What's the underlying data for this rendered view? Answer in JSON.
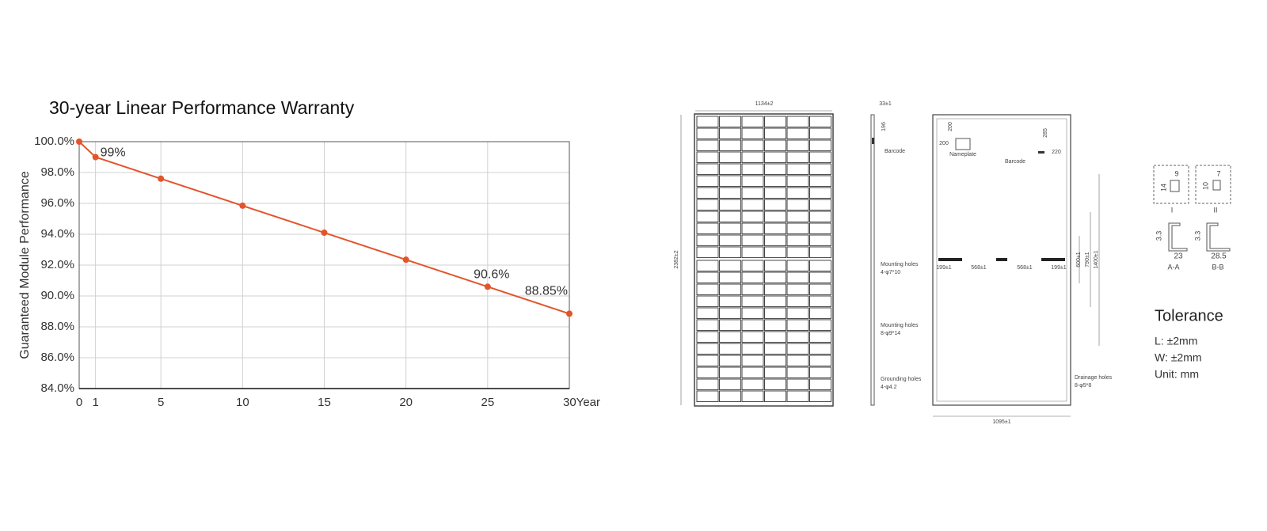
{
  "chart_data": {
    "type": "line",
    "title": "30-year Linear Performance Warranty",
    "y_label": "Guaranteed Module Performance",
    "x": [
      0,
      1,
      5,
      10,
      15,
      20,
      25,
      30
    ],
    "values": [
      100,
      99,
      97.6,
      95.85,
      94.1,
      92.35,
      90.6,
      88.85
    ],
    "value_labels": [
      null,
      "99%",
      null,
      null,
      null,
      null,
      "90.6%",
      "88.85%"
    ],
    "color": "#e2552b",
    "xlim": [
      0,
      30
    ],
    "ylim": [
      84,
      100
    ],
    "xticks": [
      0,
      1,
      5,
      10,
      15,
      20,
      25,
      {
        "value": 30,
        "label": "30Year"
      }
    ],
    "yticks": [
      {
        "value": 84,
        "label": "84.0%"
      },
      {
        "value": 86,
        "label": "86.0%"
      },
      {
        "value": 88,
        "label": "88.0%"
      },
      {
        "value": 90,
        "label": "90.0%"
      },
      {
        "value": 92,
        "label": "92.0%"
      },
      {
        "value": 94,
        "label": "94.0%"
      },
      {
        "value": 96,
        "label": "96.0%"
      },
      {
        "value": 98,
        "label": "98.0%"
      },
      {
        "value": 100,
        "label": "100.0%"
      }
    ],
    "grid": true
  },
  "drawing": {
    "width": "1134±2",
    "height": "2382±2",
    "frame": "33±1",
    "d196": "196",
    "barcode_side": "Barcode",
    "d200a": "200",
    "d200b": "200",
    "nameplate": "Nameplate",
    "barcode_back": "Barcode",
    "d285": "285",
    "d220": "220",
    "mount1": "Mounting holes",
    "mount1_spec": "4-φ7*10",
    "d199a": "199±1",
    "d568a": "568±1",
    "d568b": "568±1",
    "d199b": "199±1",
    "d600": "600±1",
    "d790": "790±1",
    "d1400": "1400±1",
    "mount2": "Mounting holes",
    "mount2_spec": "8-φ9*14",
    "ground": "Grounding holes",
    "ground_spec": "4-φ4.2",
    "drain": "Drainage holes",
    "drain_spec": "8-φ5*8",
    "back_width": "1095±1",
    "s1_h": "14",
    "s1_w": "9",
    "s1_name": "I",
    "s2_h": "10",
    "s2_w": "7",
    "s2_name": "II",
    "aa_h": "3.3",
    "aa_w": "23",
    "aa_name": "A-A",
    "bb_h": "3.3",
    "bb_w": "28.5",
    "bb_name": "B-B",
    "tolerance": "Tolerance",
    "tol_l": "L: ±2mm",
    "tol_w": "W: ±2mm",
    "unit": "Unit: mm"
  }
}
